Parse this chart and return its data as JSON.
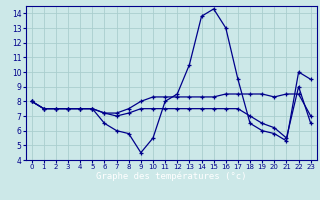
{
  "title": "Graphe des températures (°c)",
  "bg_color": "#cce8e8",
  "grid_color": "#aacece",
  "line_color": "#00008b",
  "xlim": [
    -0.5,
    23.5
  ],
  "ylim": [
    4,
    14.5
  ],
  "xticks": [
    0,
    1,
    2,
    3,
    4,
    5,
    6,
    7,
    8,
    9,
    10,
    11,
    12,
    13,
    14,
    15,
    16,
    17,
    18,
    19,
    20,
    21,
    22,
    23
  ],
  "yticks": [
    4,
    5,
    6,
    7,
    8,
    9,
    10,
    11,
    12,
    13,
    14
  ],
  "series": [
    [
      8.0,
      7.5,
      7.5,
      7.5,
      7.5,
      7.5,
      6.5,
      6.0,
      5.8,
      4.5,
      5.5,
      8.0,
      8.5,
      10.5,
      13.8,
      14.3,
      13.0,
      9.5,
      6.5,
      6.0,
      5.8,
      5.3,
      10.0,
      9.5
    ],
    [
      8.0,
      7.5,
      7.5,
      7.5,
      7.5,
      7.5,
      7.2,
      7.0,
      7.2,
      7.5,
      7.5,
      7.5,
      7.5,
      7.5,
      7.5,
      7.5,
      7.5,
      7.5,
      7.0,
      6.5,
      6.2,
      5.5,
      9.0,
      6.5
    ],
    [
      8.0,
      7.5,
      7.5,
      7.5,
      7.5,
      7.5,
      7.2,
      7.2,
      7.5,
      8.0,
      8.3,
      8.3,
      8.3,
      8.3,
      8.3,
      8.3,
      8.5,
      8.5,
      8.5,
      8.5,
      8.3,
      8.5,
      8.5,
      7.0
    ]
  ]
}
